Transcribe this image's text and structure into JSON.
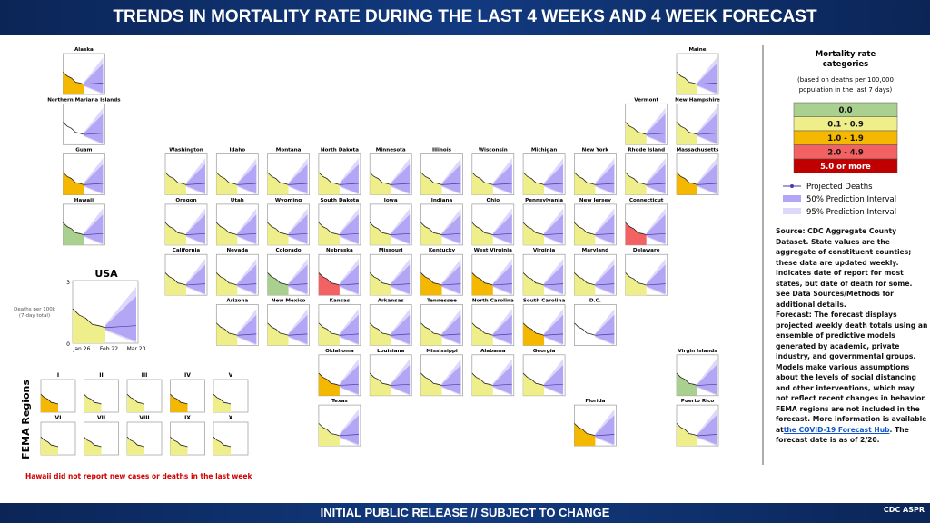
{
  "header": {
    "title": "TRENDS IN MORTALITY RATE DURING THE LAST 4 WEEKS AND 4 WEEK FORECAST"
  },
  "footer": {
    "text": "INITIAL PUBLIC RELEASE // SUBJECT TO CHANGE",
    "logos": [
      "CDC",
      "ASPR"
    ]
  },
  "note": "Hawaii did not report new cases or deaths in the last week",
  "usa": {
    "title": "USA",
    "y_label": [
      "Deaths per 100k",
      "(7-day total)"
    ],
    "yticks": [
      "3",
      "0"
    ],
    "x": [
      "Jan 26",
      "Feb 22",
      "Mar 20"
    ]
  },
  "fema": {
    "title": "FEMA Regions",
    "regions": [
      {
        "name": "I",
        "category": 2
      },
      {
        "name": "II",
        "category": 1
      },
      {
        "name": "III",
        "category": 1
      },
      {
        "name": "IV",
        "category": 2
      },
      {
        "name": "V",
        "category": 1
      },
      {
        "name": "VI",
        "category": 1
      },
      {
        "name": "VII",
        "category": 1
      },
      {
        "name": "VIII",
        "category": 1
      },
      {
        "name": "IX",
        "category": 1
      },
      {
        "name": "X",
        "category": 1
      }
    ]
  },
  "states": [
    {
      "name": "Alaska",
      "category": 2
    },
    {
      "name": "Maine",
      "category": 1
    },
    {
      "name": "Northern Mariana Islands",
      "category": null
    },
    {
      "name": "Vermont",
      "category": 1
    },
    {
      "name": "New Hampshire",
      "category": 1
    },
    {
      "name": "Guam",
      "category": 2
    },
    {
      "name": "Washington",
      "category": 1
    },
    {
      "name": "Idaho",
      "category": 1
    },
    {
      "name": "Montana",
      "category": 1
    },
    {
      "name": "North Dakota",
      "category": 1
    },
    {
      "name": "Minnesota",
      "category": 1
    },
    {
      "name": "Illinois",
      "category": 1
    },
    {
      "name": "Wisconsin",
      "category": 1
    },
    {
      "name": "Michigan",
      "category": 1
    },
    {
      "name": "New York",
      "category": 1
    },
    {
      "name": "Rhode Island",
      "category": 1
    },
    {
      "name": "Massachusetts",
      "category": 2
    },
    {
      "name": "Hawaii",
      "category": 0
    },
    {
      "name": "Oregon",
      "category": 1
    },
    {
      "name": "Utah",
      "category": 1
    },
    {
      "name": "Wyoming",
      "category": 1
    },
    {
      "name": "South Dakota",
      "category": 1
    },
    {
      "name": "Iowa",
      "category": 1
    },
    {
      "name": "Indiana",
      "category": 1
    },
    {
      "name": "Ohio",
      "category": 1
    },
    {
      "name": "Pennsylvania",
      "category": 1
    },
    {
      "name": "New Jersey",
      "category": 1
    },
    {
      "name": "Connecticut",
      "category": 3
    },
    {
      "name": "California",
      "category": 1
    },
    {
      "name": "Nevada",
      "category": 1
    },
    {
      "name": "Colorado",
      "category": 0
    },
    {
      "name": "Nebraska",
      "category": 3
    },
    {
      "name": "Missouri",
      "category": 1
    },
    {
      "name": "Kentucky",
      "category": 2
    },
    {
      "name": "West Virginia",
      "category": 2
    },
    {
      "name": "Virginia",
      "category": 1
    },
    {
      "name": "Maryland",
      "category": 1
    },
    {
      "name": "Delaware",
      "category": 1
    },
    {
      "name": "Arizona",
      "category": 1
    },
    {
      "name": "New Mexico",
      "category": 1
    },
    {
      "name": "Kansas",
      "category": 1
    },
    {
      "name": "Arkansas",
      "category": 1
    },
    {
      "name": "Tennessee",
      "category": 1
    },
    {
      "name": "North Carolina",
      "category": 1
    },
    {
      "name": "South Carolina",
      "category": 2
    },
    {
      "name": "D.C.",
      "category": null
    },
    {
      "name": "Oklahoma",
      "category": 2
    },
    {
      "name": "Louisiana",
      "category": 1
    },
    {
      "name": "Mississippi",
      "category": 1
    },
    {
      "name": "Alabama",
      "category": 1
    },
    {
      "name": "Georgia",
      "category": 1
    },
    {
      "name": "Virgin Islands",
      "category": 0
    },
    {
      "name": "Texas",
      "category": 1
    },
    {
      "name": "Florida",
      "category": 2
    },
    {
      "name": "Puerto Rico",
      "category": 1
    }
  ],
  "legend": {
    "title": [
      "Mortality rate",
      "categories"
    ],
    "subtitle": [
      "(based on deaths per 100,000",
      "population in the last 7 days)"
    ],
    "categories": [
      {
        "label": "0.0",
        "color": "#a9d08e"
      },
      {
        "label": "0.1 - 0.9",
        "color": "#eeee8a"
      },
      {
        "label": "1.0 - 1.9",
        "color": "#f5b800"
      },
      {
        "label": "2.0 - 4.9",
        "color": "#f26262"
      },
      {
        "label": "5.0 or more",
        "color": "#c00000"
      }
    ],
    "items": [
      "Projected Deaths",
      "50% Prediction Interval",
      "95% Prediction Interval"
    ]
  },
  "source": "Source: CDC Aggregate County Dataset. State values are the aggregate of constituent counties; these data are updated weekly. Indicates date of report for most states, but date of death for some. See Data Sources/Methods for additional details.",
  "forecast": {
    "text_before": "Forecast: The forecast displays projected weekly death totals using an ensemble of predictive models generated by academic, private industry, and governmental groups. Models make various assumptions about the levels of social distancing and other interventions, which may not reflect recent changes in behavior. FEMA regions are not included in the forecast. More information is available at",
    "link": "the COVID-19 Forecast Hub",
    "text_after": ". The forecast date is as of 2/20."
  }
}
